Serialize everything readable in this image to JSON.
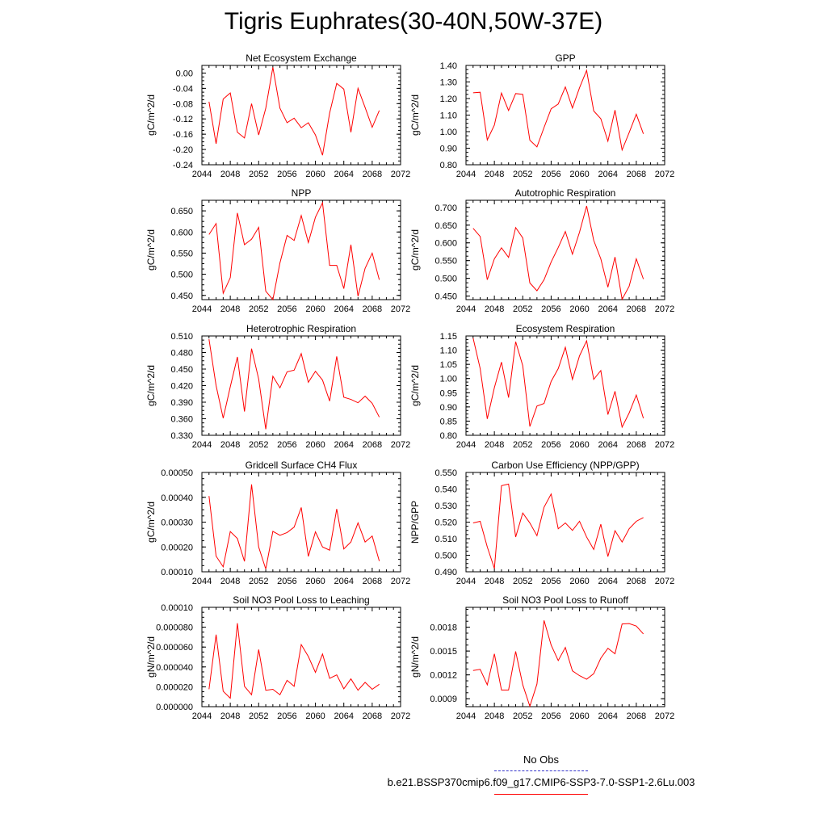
{
  "title": "Tigris Euphrates(30-40N,50W-37E)",
  "legend": {
    "obs_label": "No Obs",
    "run_label": "b.e21.BSSP370cmip6.f09_g17.CMIP6-SSP3-7.0-SSP1-2.6Lu.003",
    "obs_color": "#3333cc",
    "run_color": "#ff0000"
  },
  "chart_data": [
    {
      "type": "line",
      "title": "Net Ecosystem Exchange",
      "ylabel": "gC/m^2/d",
      "xlim": [
        2044,
        2072
      ],
      "ylim": [
        -0.24,
        0.02
      ],
      "xticks": [
        "2044",
        "2048",
        "2052",
        "2056",
        "2060",
        "2064",
        "2068",
        "2072"
      ],
      "yticks": [
        "-0.24",
        "-0.20",
        "-0.16",
        "-0.12",
        "-0.08",
        "-0.04",
        "0.00"
      ],
      "x": [
        2045,
        2046,
        2047,
        2048,
        2049,
        2050,
        2051,
        2052,
        2053,
        2054,
        2055,
        2056,
        2057,
        2058,
        2059,
        2060,
        2061,
        2062,
        2063,
        2064,
        2065,
        2066,
        2067,
        2068,
        2069
      ],
      "series": [
        {
          "values": [
            -0.075,
            -0.185,
            -0.068,
            -0.052,
            -0.155,
            -0.17,
            -0.08,
            -0.162,
            -0.092,
            0.015,
            -0.092,
            -0.13,
            -0.118,
            -0.143,
            -0.13,
            -0.162,
            -0.215,
            -0.105,
            -0.027,
            -0.042,
            -0.155,
            -0.04,
            -0.09,
            -0.142,
            -0.098
          ]
        }
      ]
    },
    {
      "type": "line",
      "title": "GPP",
      "ylabel": "gC/m^2/d",
      "xlim": [
        2044,
        2072
      ],
      "ylim": [
        0.8,
        1.4
      ],
      "xticks": [
        "2044",
        "2048",
        "2052",
        "2056",
        "2060",
        "2064",
        "2068",
        "2072"
      ],
      "yticks": [
        "0.80",
        "0.90",
        "1.00",
        "1.10",
        "1.20",
        "1.30",
        "1.40"
      ],
      "x": [
        2045,
        2046,
        2047,
        2048,
        2049,
        2050,
        2051,
        2052,
        2053,
        2054,
        2055,
        2056,
        2057,
        2058,
        2059,
        2060,
        2061,
        2062,
        2063,
        2064,
        2065,
        2066,
        2067,
        2068,
        2069
      ],
      "series": [
        {
          "values": [
            1.235,
            1.238,
            0.95,
            1.04,
            1.233,
            1.128,
            1.23,
            1.225,
            0.948,
            0.908,
            1.025,
            1.138,
            1.167,
            1.27,
            1.143,
            1.265,
            1.37,
            1.125,
            1.078,
            0.942,
            1.13,
            0.889,
            0.995,
            1.105,
            0.987
          ]
        }
      ]
    },
    {
      "type": "line",
      "title": "NPP",
      "ylabel": "gC/m^2/d",
      "xlim": [
        2044,
        2072
      ],
      "ylim": [
        0.44,
        0.675
      ],
      "xticks": [
        "2044",
        "2048",
        "2052",
        "2056",
        "2060",
        "2064",
        "2068",
        "2072"
      ],
      "yticks": [
        "0.450",
        "0.500",
        "0.550",
        "0.600",
        "0.650"
      ],
      "x": [
        2045,
        2046,
        2047,
        2048,
        2049,
        2050,
        2051,
        2052,
        2053,
        2054,
        2055,
        2056,
        2057,
        2058,
        2059,
        2060,
        2061,
        2062,
        2063,
        2064,
        2065,
        2066,
        2067,
        2068,
        2069
      ],
      "series": [
        {
          "values": [
            0.594,
            0.62,
            0.455,
            0.492,
            0.645,
            0.57,
            0.583,
            0.611,
            0.46,
            0.44,
            0.527,
            0.592,
            0.58,
            0.639,
            0.575,
            0.635,
            0.669,
            0.521,
            0.521,
            0.466,
            0.57,
            0.448,
            0.514,
            0.55,
            0.487
          ]
        }
      ]
    },
    {
      "type": "line",
      "title": "Autotrophic Respiration",
      "ylabel": "gC/m^2/d",
      "xlim": [
        2044,
        2072
      ],
      "ylim": [
        0.44,
        0.72
      ],
      "xticks": [
        "2044",
        "2048",
        "2052",
        "2056",
        "2060",
        "2064",
        "2068",
        "2072"
      ],
      "yticks": [
        "0.450",
        "0.500",
        "0.550",
        "0.600",
        "0.650",
        "0.700"
      ],
      "x": [
        2045,
        2046,
        2047,
        2048,
        2049,
        2050,
        2051,
        2052,
        2053,
        2054,
        2055,
        2056,
        2057,
        2058,
        2059,
        2060,
        2061,
        2062,
        2063,
        2064,
        2065,
        2066,
        2067,
        2068,
        2069
      ],
      "series": [
        {
          "values": [
            0.641,
            0.618,
            0.496,
            0.555,
            0.586,
            0.559,
            0.643,
            0.614,
            0.487,
            0.465,
            0.496,
            0.546,
            0.587,
            0.632,
            0.568,
            0.63,
            0.704,
            0.607,
            0.555,
            0.475,
            0.56,
            0.441,
            0.478,
            0.555,
            0.498
          ]
        }
      ]
    },
    {
      "type": "line",
      "title": "Heterotrophic Respiration",
      "ylabel": "gC/m^2/d",
      "xlim": [
        2044,
        2072
      ],
      "ylim": [
        0.33,
        0.51
      ],
      "xticks": [
        "2044",
        "2048",
        "2052",
        "2056",
        "2060",
        "2064",
        "2068",
        "2072"
      ],
      "yticks": [
        "0.330",
        "0.360",
        "0.390",
        "0.420",
        "0.450",
        "0.480",
        "0.510"
      ],
      "x": [
        2045,
        2046,
        2047,
        2048,
        2049,
        2050,
        2051,
        2052,
        2053,
        2054,
        2055,
        2056,
        2057,
        2058,
        2059,
        2060,
        2061,
        2062,
        2063,
        2064,
        2065,
        2066,
        2067,
        2068,
        2069
      ],
      "series": [
        {
          "values": [
            0.504,
            0.42,
            0.361,
            0.418,
            0.472,
            0.373,
            0.487,
            0.432,
            0.341,
            0.437,
            0.416,
            0.445,
            0.448,
            0.478,
            0.426,
            0.446,
            0.43,
            0.392,
            0.473,
            0.399,
            0.395,
            0.389,
            0.401,
            0.388,
            0.363
          ]
        }
      ]
    },
    {
      "type": "line",
      "title": "Ecosystem Respiration",
      "ylabel": "gC/m^2/d",
      "xlim": [
        2044,
        2072
      ],
      "ylim": [
        0.8,
        1.15
      ],
      "xticks": [
        "2044",
        "2048",
        "2052",
        "2056",
        "2060",
        "2064",
        "2068",
        "2072"
      ],
      "yticks": [
        "0.80",
        "0.85",
        "0.90",
        "0.95",
        "1.00",
        "1.05",
        "1.10",
        "1.15"
      ],
      "x": [
        2045,
        2046,
        2047,
        2048,
        2049,
        2050,
        2051,
        2052,
        2053,
        2054,
        2055,
        2056,
        2057,
        2058,
        2059,
        2060,
        2061,
        2062,
        2063,
        2064,
        2065,
        2066,
        2067,
        2068,
        2069
      ],
      "series": [
        {
          "values": [
            1.143,
            1.035,
            0.858,
            0.968,
            1.058,
            0.933,
            1.13,
            1.045,
            0.831,
            0.903,
            0.912,
            0.99,
            1.035,
            1.11,
            0.997,
            1.08,
            1.133,
            0.997,
            1.028,
            0.873,
            0.955,
            0.829,
            0.879,
            0.942,
            0.86
          ]
        }
      ]
    },
    {
      "type": "line",
      "title": "Gridcell Surface CH4 Flux",
      "ylabel": "gC/m^2/d",
      "xlim": [
        2044,
        2072
      ],
      "ylim": [
        0.0001,
        0.0005
      ],
      "xticks": [
        "2044",
        "2048",
        "2052",
        "2056",
        "2060",
        "2064",
        "2068",
        "2072"
      ],
      "yticks": [
        "0.00010",
        "0.00020",
        "0.00030",
        "0.00040",
        "0.00050"
      ],
      "x": [
        2045,
        2046,
        2047,
        2048,
        2049,
        2050,
        2051,
        2052,
        2053,
        2054,
        2055,
        2056,
        2057,
        2058,
        2059,
        2060,
        2061,
        2062,
        2063,
        2064,
        2065,
        2066,
        2067,
        2068,
        2069
      ],
      "series": [
        {
          "values": [
            0.000405,
            0.000163,
            0.00012,
            0.000262,
            0.000234,
            0.000142,
            0.000452,
            0.0002,
            0.000111,
            0.000263,
            0.000247,
            0.000258,
            0.00028,
            0.000359,
            0.000162,
            0.000261,
            0.0002,
            0.000187,
            0.000353,
            0.000192,
            0.00022,
            0.000297,
            0.00022,
            0.000244,
            0.000143
          ]
        }
      ]
    },
    {
      "type": "line",
      "title": "Carbon Use Efficiency (NPP/GPP)",
      "ylabel": "NPP/GPP",
      "xlim": [
        2044,
        2072
      ],
      "ylim": [
        0.49,
        0.55
      ],
      "xticks": [
        "2044",
        "2048",
        "2052",
        "2056",
        "2060",
        "2064",
        "2068",
        "2072"
      ],
      "yticks": [
        "0.490",
        "0.500",
        "0.510",
        "0.520",
        "0.530",
        "0.540",
        "0.550"
      ],
      "x": [
        2045,
        2046,
        2047,
        2048,
        2049,
        2050,
        2051,
        2052,
        2053,
        2054,
        2055,
        2056,
        2057,
        2058,
        2059,
        2060,
        2061,
        2062,
        2063,
        2064,
        2065,
        2066,
        2067,
        2068,
        2069
      ],
      "series": [
        {
          "values": [
            0.5195,
            0.5205,
            0.505,
            0.492,
            0.542,
            0.543,
            0.511,
            0.5255,
            0.5195,
            0.5118,
            0.529,
            0.537,
            0.516,
            0.5195,
            0.515,
            0.5205,
            0.511,
            0.5035,
            0.5187,
            0.4992,
            0.5148,
            0.508,
            0.516,
            0.5205,
            0.5228
          ]
        }
      ]
    },
    {
      "type": "line",
      "title": "Soil NO3 Pool Loss to Leaching",
      "ylabel": "gN/m^2/d",
      "xlim": [
        2044,
        2072
      ],
      "ylim": [
        0.0,
        0.0001
      ],
      "xticks": [
        "2044",
        "2048",
        "2052",
        "2056",
        "2060",
        "2064",
        "2068",
        "2072"
      ],
      "yticks": [
        "0.000000",
        "0.000020",
        "0.000040",
        "0.000060",
        "0.000080",
        "0.00010"
      ],
      "x": [
        2045,
        2046,
        2047,
        2048,
        2049,
        2050,
        2051,
        2052,
        2053,
        2054,
        2055,
        2056,
        2057,
        2058,
        2059,
        2060,
        2061,
        2062,
        2063,
        2064,
        2065,
        2066,
        2067,
        2068,
        2069
      ],
      "series": [
        {
          "values": [
            1.75e-05,
            7.25e-05,
            1.55e-05,
            8.5e-06,
            8.4e-05,
            2.05e-05,
            1.2e-05,
            5.75e-05,
            1.65e-05,
            1.75e-05,
            1.2e-05,
            2.65e-05,
            2.05e-05,
            6.25e-05,
            5.05e-05,
            3.45e-05,
            5.3e-05,
            2.85e-05,
            3.2e-05,
            1.8e-05,
            2.8e-05,
            1.65e-05,
            2.45e-05,
            1.75e-05,
            2.25e-05
          ]
        }
      ]
    },
    {
      "type": "line",
      "title": "Soil NO3 Pool Loss to Runoff",
      "ylabel": "gN/m^2/d",
      "xlim": [
        2044,
        2072
      ],
      "ylim": [
        0.0008,
        0.00205
      ],
      "xticks": [
        "2044",
        "2048",
        "2052",
        "2056",
        "2060",
        "2064",
        "2068",
        "2072"
      ],
      "yticks": [
        "0.0009",
        "0.0012",
        "0.0015",
        "0.0018"
      ],
      "x": [
        2045,
        2046,
        2047,
        2048,
        2049,
        2050,
        2051,
        2052,
        2053,
        2054,
        2055,
        2056,
        2057,
        2058,
        2059,
        2060,
        2061,
        2062,
        2063,
        2064,
        2065,
        2066,
        2067,
        2068,
        2069
      ],
      "series": [
        {
          "values": [
            0.001255,
            0.00127,
            0.001075,
            0.001465,
            0.00101,
            0.00101,
            0.001495,
            0.001075,
            0.000805,
            0.001085,
            0.001885,
            0.001575,
            0.00138,
            0.001545,
            0.00125,
            0.00119,
            0.001145,
            0.001215,
            0.00141,
            0.001535,
            0.001465,
            0.00184,
            0.001845,
            0.001815,
            0.001715
          ]
        }
      ]
    }
  ]
}
